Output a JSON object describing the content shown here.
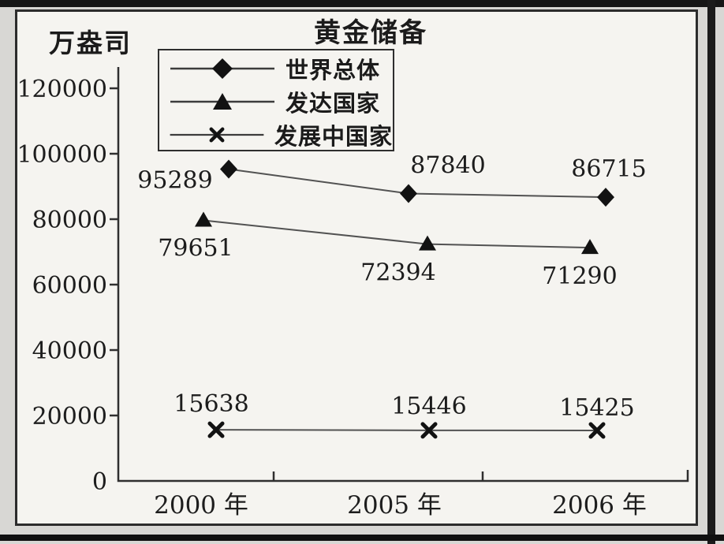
{
  "chart_data": {
    "type": "line",
    "title": "黄金储备",
    "unit_label": "万盎司",
    "categories": [
      "2000 年",
      "2005 年",
      "2006 年"
    ],
    "series": [
      {
        "name": "世界总体",
        "marker": "diamond",
        "values": [
          95289,
          87840,
          86715
        ]
      },
      {
        "name": "发达国家",
        "marker": "triangle",
        "values": [
          79651,
          72394,
          71290
        ]
      },
      {
        "name": "发展中国家",
        "marker": "x",
        "values": [
          15638,
          15446,
          15425
        ]
      }
    ],
    "yticks": [
      0,
      20000,
      40000,
      60000,
      80000,
      100000,
      120000
    ],
    "ylim": [
      0,
      130000
    ],
    "grid": false,
    "legend_position": "top-left-inside",
    "colors": {
      "ink": "#1b1b1b",
      "paper": "#f5f4f0",
      "scan_edge": "#161616"
    },
    "data_labels_shown": true
  }
}
